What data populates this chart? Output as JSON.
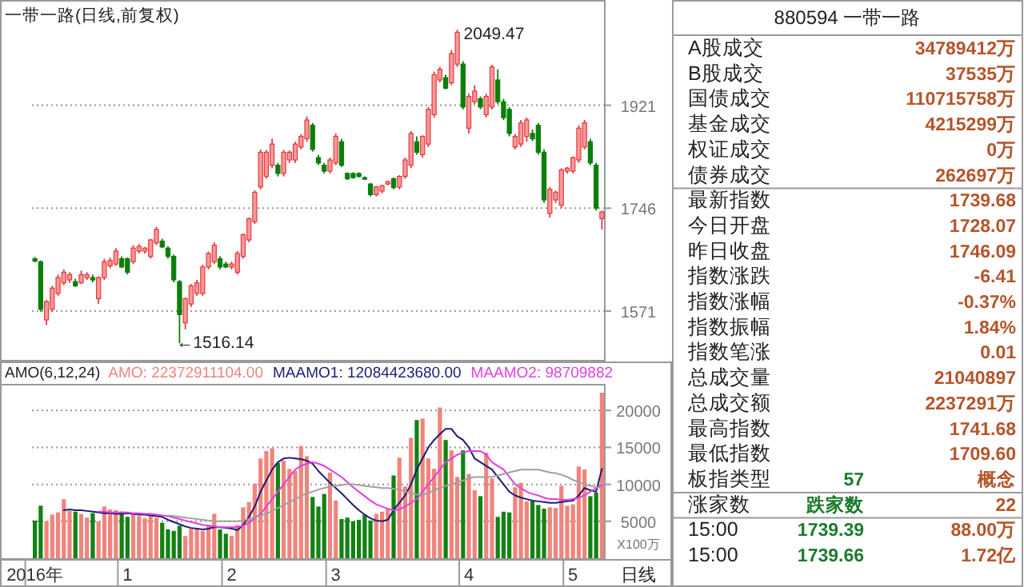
{
  "chart_data": [
    {
      "type": "candlestick",
      "title": "一带一路(日线,前复权)",
      "categories": [
        null,
        null,
        null,
        null,
        null,
        null,
        null,
        null,
        null,
        null,
        null,
        null,
        null,
        null,
        null,
        null,
        null,
        null,
        null,
        null,
        null,
        null,
        null,
        null,
        null,
        null,
        null,
        null,
        null,
        null,
        null,
        null,
        null,
        null,
        null,
        null,
        null,
        null,
        null,
        null,
        null,
        null,
        null,
        null,
        null,
        null,
        null,
        null,
        null,
        null,
        null,
        null,
        null,
        null,
        null,
        null,
        null,
        null,
        null,
        null,
        null,
        null,
        null,
        null,
        null,
        null,
        null,
        null,
        null,
        null,
        null,
        null,
        null,
        null,
        null,
        null,
        null,
        null,
        null,
        null,
        null,
        null,
        null,
        null,
        null,
        null,
        null,
        null,
        null,
        null,
        null,
        null,
        null,
        null,
        null,
        null,
        null,
        null,
        null
      ],
      "ohlc": [
        [
          1660,
          1663,
          1654,
          1656
        ],
        [
          1655,
          1657,
          1570,
          1574
        ],
        [
          1556,
          1590,
          1547,
          1587
        ],
        [
          1574,
          1614,
          1570,
          1610
        ],
        [
          1601,
          1633,
          1597,
          1628
        ],
        [
          1619,
          1642,
          1615,
          1637
        ],
        [
          1624,
          1637,
          1619,
          1633
        ],
        [
          1621,
          1626,
          1612,
          1614
        ],
        [
          1619,
          1640,
          1617,
          1633
        ],
        [
          1628,
          1637,
          1624,
          1633
        ],
        [
          1628,
          1633,
          1620,
          1624
        ],
        [
          1592,
          1630,
          1583,
          1628
        ],
        [
          1628,
          1660,
          1624,
          1655
        ],
        [
          1648,
          1662,
          1644,
          1657
        ],
        [
          1651,
          1678,
          1648,
          1673
        ],
        [
          1660,
          1664,
          1644,
          1646
        ],
        [
          1660,
          1662,
          1633,
          1637
        ],
        [
          1655,
          1683,
          1651,
          1678
        ],
        [
          1673,
          1685,
          1669,
          1681
        ],
        [
          1673,
          1680,
          1669,
          1678
        ],
        [
          1664,
          1694,
          1660,
          1692
        ],
        [
          1687,
          1714,
          1683,
          1710
        ],
        [
          1690,
          1694,
          1678,
          1680
        ],
        [
          1678,
          1681,
          1660,
          1664
        ],
        [
          1664,
          1667,
          1620,
          1624
        ],
        [
          1621,
          1624,
          1516.14,
          1565
        ],
        [
          1551,
          1594,
          1540,
          1592
        ],
        [
          1583,
          1617,
          1578,
          1614
        ],
        [
          1601,
          1624,
          1597,
          1619
        ],
        [
          1601,
          1650,
          1597,
          1646
        ],
        [
          1646,
          1672,
          1642,
          1669
        ],
        [
          1655,
          1688,
          1651,
          1683
        ],
        [
          1660,
          1664,
          1642,
          1646
        ],
        [
          1651,
          1655,
          1644,
          1646
        ],
        [
          1646,
          1655,
          1642,
          1651
        ],
        [
          1637,
          1673,
          1633,
          1669
        ],
        [
          1664,
          1703,
          1660,
          1701
        ],
        [
          1692,
          1730,
          1688,
          1728
        ],
        [
          1723,
          1776,
          1719,
          1773
        ],
        [
          1782,
          1846,
          1778,
          1841
        ],
        [
          1800,
          1845,
          1796,
          1841
        ],
        [
          1819,
          1864,
          1814,
          1855
        ],
        [
          1819,
          1823,
          1800,
          1805
        ],
        [
          1805,
          1845,
          1800,
          1841
        ],
        [
          1828,
          1844,
          1823,
          1841
        ],
        [
          1828,
          1859,
          1823,
          1855
        ],
        [
          1850,
          1872,
          1846,
          1868
        ],
        [
          1864,
          1902,
          1859,
          1896
        ],
        [
          1887,
          1891,
          1842,
          1846
        ],
        [
          1832,
          1837,
          1819,
          1823
        ],
        [
          1819,
          1823,
          1805,
          1809
        ],
        [
          1809,
          1832,
          1805,
          1828
        ],
        [
          1823,
          1873,
          1819,
          1868
        ],
        [
          1859,
          1864,
          1816,
          1819
        ],
        [
          1805,
          1807,
          1794,
          1796
        ],
        [
          1805,
          1807,
          1796,
          1798
        ],
        [
          1805,
          1807,
          1798,
          1800
        ],
        [
          1798,
          1800,
          1794,
          1796
        ],
        [
          1787,
          1789,
          1766,
          1769
        ],
        [
          1769,
          1784,
          1766,
          1782
        ],
        [
          1775,
          1786,
          1771,
          1784
        ],
        [
          1787,
          1793,
          1785,
          1791
        ],
        [
          1796,
          1798,
          1778,
          1781
        ],
        [
          1782,
          1802,
          1778,
          1800
        ],
        [
          1800,
          1832,
          1796,
          1828
        ],
        [
          1819,
          1877,
          1814,
          1873
        ],
        [
          1859,
          1868,
          1837,
          1841
        ],
        [
          1837,
          1870,
          1832,
          1868
        ],
        [
          1855,
          1918,
          1850,
          1914
        ],
        [
          1905,
          1978,
          1900,
          1973
        ],
        [
          1964,
          1986,
          1960,
          1982
        ],
        [
          1968,
          1973,
          1948,
          1950
        ],
        [
          1959,
          2015,
          1955,
          2009
        ],
        [
          1991,
          2049.47,
          1986,
          2045
        ],
        [
          1991,
          1996,
          1914,
          1918
        ],
        [
          1882,
          1941,
          1873,
          1936
        ],
        [
          1927,
          1955,
          1923,
          1945
        ],
        [
          1932,
          1936,
          1914,
          1918
        ],
        [
          1905,
          1941,
          1900,
          1936
        ],
        [
          1918,
          1990,
          1914,
          1986
        ],
        [
          1964,
          1982,
          1923,
          1927
        ],
        [
          1927,
          1932,
          1896,
          1900
        ],
        [
          1914,
          1918,
          1868,
          1873
        ],
        [
          1850,
          1872,
          1846,
          1868
        ],
        [
          1855,
          1896,
          1850,
          1891
        ],
        [
          1868,
          1900,
          1859,
          1896
        ],
        [
          1873,
          1880,
          1860,
          1864
        ],
        [
          1887,
          1891,
          1837,
          1841
        ],
        [
          1841,
          1846,
          1755,
          1760
        ],
        [
          1737,
          1782,
          1730,
          1778
        ],
        [
          1760,
          1776,
          1755,
          1773
        ],
        [
          1751,
          1814,
          1746,
          1811
        ],
        [
          1809,
          1816,
          1805,
          1814
        ],
        [
          1809,
          1834,
          1805,
          1832
        ],
        [
          1828,
          1887,
          1823,
          1882
        ],
        [
          1850,
          1896,
          1846,
          1891
        ],
        [
          1859,
          1864,
          1819,
          1823
        ],
        [
          1819,
          1823,
          1742,
          1746.09
        ],
        [
          1728.07,
          1741.68,
          1709.6,
          1739.68
        ]
      ],
      "ylim": [
        1488,
        2100
      ],
      "yticks": [
        1571,
        1746,
        1921
      ],
      "grid": "y",
      "tick_labels": "y",
      "annotations": [
        "2049.47",
        "←1516.14"
      ]
    },
    {
      "type": "bar",
      "title": "AMO(6,12,24)",
      "ylabel": "X100万",
      "categories": [
        "2016年",
        null,
        null,
        null,
        null,
        null,
        null,
        null,
        null,
        null,
        null,
        null,
        null,
        null,
        null,
        null,
        "1",
        null,
        null,
        null,
        null,
        null,
        null,
        null,
        null,
        null,
        null,
        null,
        null,
        null,
        null,
        null,
        null,
        null,
        "2",
        null,
        null,
        null,
        null,
        null,
        null,
        null,
        null,
        null,
        null,
        null,
        null,
        null,
        null,
        null,
        null,
        null,
        "3",
        null,
        null,
        null,
        null,
        null,
        null,
        null,
        null,
        null,
        null,
        null,
        null,
        null,
        null,
        null,
        null,
        null,
        null,
        null,
        null,
        null,
        null,
        "4",
        null,
        null,
        null,
        null,
        null,
        null,
        null,
        null,
        null,
        null,
        null,
        null,
        null,
        null,
        null,
        null,
        null,
        "5",
        null,
        null,
        null,
        null,
        null
      ],
      "series": [
        {
          "name": "AMO: 22372911104.00",
          "type": "bar",
          "values": [
            5100,
            7100,
            5000,
            5900,
            6200,
            8000,
            6400,
            6300,
            6000,
            5500,
            6100,
            5000,
            7000,
            6600,
            6500,
            6300,
            5600,
            6100,
            5700,
            5400,
            5800,
            5500,
            4800,
            3900,
            3700,
            4400,
            3000,
            4000,
            4000,
            3700,
            4500,
            6000,
            3900,
            3300,
            3000,
            4500,
            6900,
            7600,
            10100,
            13500,
            14500,
            14900,
            12900,
            13200,
            12100,
            11800,
            15200,
            13800,
            8300,
            7000,
            8700,
            11600,
            7800,
            5300,
            5500,
            5000,
            5200,
            5900,
            5100,
            6000,
            6300,
            6700,
            11200,
            13600,
            9700,
            16300,
            18700,
            18900,
            13500,
            12100,
            20400,
            16000,
            14600,
            11000,
            14600,
            11400,
            9200,
            8400,
            14300,
            10800,
            5600,
            6300,
            6200,
            9600,
            10200,
            7700,
            7700,
            7200,
            6700,
            6900,
            6800,
            9800,
            7100,
            7300,
            12400,
            12000,
            8400,
            8900,
            22400
          ],
          "colors": [
            "#128212",
            "#128212",
            "#f0847c",
            "#f0847c",
            "#f0847c",
            "#f0847c",
            "#f0847c",
            "#128212",
            "#f0847c",
            "#f0847c",
            "#128212",
            "#f0847c",
            "#f0847c",
            "#f0847c",
            "#f0847c",
            "#128212",
            "#128212",
            "#f0847c",
            "#f0847c",
            "#f0847c",
            "#f0847c",
            "#f0847c",
            "#128212",
            "#128212",
            "#128212",
            "#128212",
            "#f0847c",
            "#f0847c",
            "#f0847c",
            "#f0847c",
            "#f0847c",
            "#f0847c",
            "#128212",
            "#128212",
            "#f0847c",
            "#f0847c",
            "#f0847c",
            "#f0847c",
            "#f0847c",
            "#f0847c",
            "#f0847c",
            "#f0847c",
            "#128212",
            "#f0847c",
            "#f0847c",
            "#f0847c",
            "#f0847c",
            "#f0847c",
            "#128212",
            "#128212",
            "#128212",
            "#f0847c",
            "#f0847c",
            "#128212",
            "#128212",
            "#128212",
            "#128212",
            "#128212",
            "#128212",
            "#f0847c",
            "#f0847c",
            "#f0847c",
            "#128212",
            "#f0847c",
            "#f0847c",
            "#f0847c",
            "#128212",
            "#f0847c",
            "#f0847c",
            "#f0847c",
            "#f0847c",
            "#128212",
            "#f0847c",
            "#f0847c",
            "#128212",
            "#f0847c",
            "#f0847c",
            "#128212",
            "#f0847c",
            "#f0847c",
            "#128212",
            "#128212",
            "#128212",
            "#f0847c",
            "#f0847c",
            "#f0847c",
            "#128212",
            "#128212",
            "#128212",
            "#f0847c",
            "#f0847c",
            "#f0847c",
            "#f0847c",
            "#f0847c",
            "#f0847c",
            "#f0847c",
            "#128212",
            "#128212",
            "#f0847c"
          ]
        },
        {
          "name": "MAAMO1: 12084423680.00",
          "type": "line",
          "color": "#1c1c78",
          "values": [
            null,
            null,
            null,
            null,
            null,
            6500,
            6600,
            6500,
            6500,
            6400,
            6300,
            6200,
            6100,
            6100,
            6000,
            6000,
            6100,
            6000,
            5900,
            5900,
            5800,
            5700,
            5600,
            5200,
            4900,
            4600,
            4300,
            4100,
            4000,
            3900,
            4000,
            4200,
            4200,
            4100,
            4000,
            3800,
            4500,
            5600,
            7000,
            9000,
            10500,
            12000,
            13000,
            13500,
            13600,
            13500,
            13400,
            13200,
            12800,
            11800,
            11000,
            10200,
            9500,
            8800,
            8000,
            7200,
            6500,
            5900,
            5400,
            5100,
            5000,
            5200,
            6500,
            7500,
            8500,
            10000,
            12000,
            13500,
            15000,
            16000,
            16800,
            17500,
            17500,
            16500,
            16000,
            15000,
            13500,
            13000,
            12500,
            12000,
            11000,
            10000,
            9000,
            8500,
            8200,
            8000,
            7800,
            7700,
            7600,
            7500,
            7500,
            7600,
            7700,
            7800,
            8500,
            9500,
            9200,
            9000,
            12100
          ]
        },
        {
          "name": "MAAMO2: 98709882",
          "type": "line",
          "color": "#e040e0",
          "values": [
            null,
            null,
            null,
            null,
            null,
            null,
            null,
            null,
            null,
            null,
            null,
            6300,
            6300,
            6200,
            6200,
            6200,
            6200,
            6100,
            6100,
            6000,
            6000,
            5900,
            5800,
            5700,
            5500,
            5300,
            5100,
            4900,
            4700,
            4500,
            4400,
            4300,
            4200,
            4200,
            4200,
            4200,
            4400,
            4800,
            5400,
            6000,
            7000,
            8000,
            9000,
            10000,
            11000,
            12000,
            12500,
            12800,
            13000,
            12800,
            12500,
            12000,
            11500,
            11000,
            10300,
            9600,
            9000,
            8400,
            7800,
            7300,
            7000,
            6700,
            6500,
            6600,
            7000,
            7500,
            8000,
            9000,
            10000,
            11000,
            12000,
            13000,
            13500,
            14000,
            14300,
            14500,
            14500,
            14500,
            14000,
            13000,
            12500,
            12000,
            11000,
            10000,
            9500,
            9000,
            8700,
            8500,
            8200,
            8000,
            8000,
            7900,
            7900,
            8000,
            8200,
            8500,
            9000,
            9500,
            9900
          ]
        },
        {
          "type": "line",
          "color": "#a0a0a0",
          "values": [
            null,
            null,
            null,
            null,
            null,
            null,
            null,
            null,
            null,
            null,
            null,
            null,
            null,
            null,
            null,
            null,
            null,
            null,
            null,
            null,
            null,
            null,
            null,
            5800,
            5700,
            5600,
            5500,
            5400,
            5300,
            5200,
            5100,
            5000,
            5000,
            5000,
            5000,
            5000,
            5100,
            5300,
            5500,
            5800,
            6000,
            6400,
            6800,
            7200,
            7600,
            8000,
            8400,
            8800,
            9000,
            9300,
            9500,
            9700,
            9800,
            9900,
            10000,
            10000,
            9900,
            9800,
            9700,
            9600,
            9500,
            9500,
            9400,
            9300,
            9000,
            8800,
            8600,
            8600,
            8800,
            9200,
            9500,
            9800,
            10000,
            10300,
            10500,
            10800,
            11000,
            11000,
            11000,
            11000,
            11200,
            11400,
            11600,
            11800,
            12000,
            12000,
            12000,
            12000,
            11800,
            11600,
            11500,
            11300,
            11000,
            10600,
            10300,
            10000,
            9800,
            9600,
            9500
          ]
        }
      ],
      "ylim": [
        0,
        23600
      ],
      "yticks": [
        5000,
        10000,
        15000,
        20000
      ],
      "grid": "y",
      "legend": "top",
      "annotations": [
        "日线"
      ]
    },
    {
      "type": "other",
      "title": "880594 一带一路",
      "categories": [
        "A股成交",
        "B股成交",
        "国债成交",
        "基金成交",
        "权证成交",
        "债券成交",
        "最新指数",
        "今日开盘",
        "昨日收盘",
        "指数涨跌",
        "指数涨幅",
        "指数振幅",
        "指数笔涨",
        "总成交量",
        "总成交额",
        "最高指数",
        "最低指数",
        "板指类型",
        "涨家数",
        "15:00",
        "15:00"
      ],
      "value_labels": [
        "34789412万",
        "37535万",
        "110715758万",
        "4215299万",
        "0万",
        "262697万",
        "1739.68",
        "1728.07",
        "1746.09",
        "-6.41",
        "-0.37%",
        "1.84%",
        "0.01",
        "21040897",
        "2237291万",
        "1741.68",
        "1709.60",
        "概念",
        "22",
        "88.00万",
        "1.72亿"
      ],
      "annotations": [
        "57",
        "跌家数",
        "1739.39",
        "1739.66"
      ]
    }
  ]
}
